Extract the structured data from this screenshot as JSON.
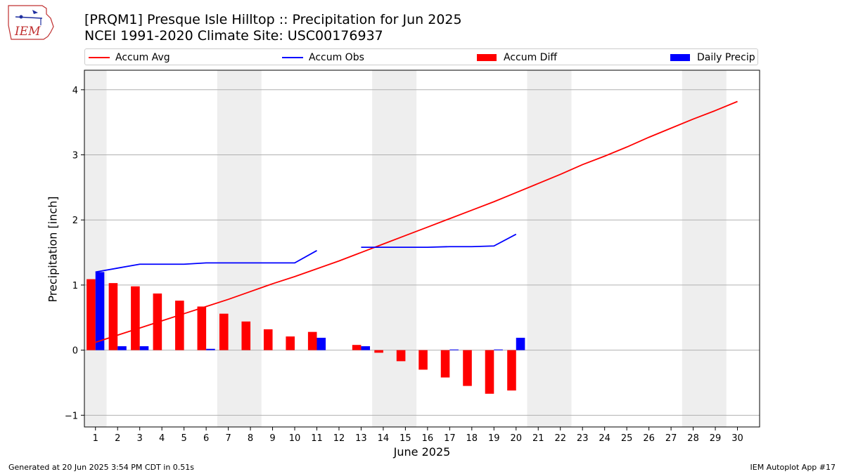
{
  "header": {
    "title_line1": "[PRQM1] Presque Isle Hilltop :: Precipitation for Jun 2025",
    "title_line2": "NCEI 1991-2020 Climate Site: USC00176937"
  },
  "logo": {
    "text": "IEM",
    "icon": "iowa-state-logo"
  },
  "legend": {
    "accum_avg": "Accum Avg",
    "accum_obs": "Accum Obs",
    "accum_diff": "Accum Diff",
    "daily_precip": "Daily Precip"
  },
  "colors": {
    "avg": "#ff0000",
    "obs": "#0000ff",
    "diff": "#ff0000",
    "daily": "#0000ff",
    "weekend": "#eeeeee"
  },
  "footer": {
    "left": "Generated at 20 Jun 2025 3:54 PM CDT in 0.51s",
    "right": "IEM Autoplot App #17"
  },
  "chart_data": {
    "type": "bar",
    "xlabel": "June 2025",
    "ylabel": "Precipitation [inch]",
    "xlim": [
      0.5,
      31
    ],
    "ylim": [
      -1.18,
      4.3
    ],
    "yticks": [
      -1,
      0,
      1,
      2,
      3,
      4
    ],
    "ytick_labels": [
      "−1",
      "0",
      "1",
      "2",
      "3",
      "4"
    ],
    "x": [
      1,
      2,
      3,
      4,
      5,
      6,
      7,
      8,
      9,
      10,
      11,
      12,
      13,
      14,
      15,
      16,
      17,
      18,
      19,
      20,
      21,
      22,
      23,
      24,
      25,
      26,
      27,
      28,
      29,
      30
    ],
    "xtick_labels": [
      "1",
      "2",
      "3",
      "4",
      "5",
      "6",
      "7",
      "8",
      "9",
      "10",
      "11",
      "12",
      "13",
      "14",
      "15",
      "16",
      "17",
      "18",
      "19",
      "20",
      "21",
      "22",
      "23",
      "24",
      "25",
      "26",
      "27",
      "28",
      "29",
      "30"
    ],
    "weekend_spans": [
      [
        0.5,
        1.5
      ],
      [
        6.5,
        8.5
      ],
      [
        13.5,
        15.5
      ],
      [
        20.5,
        22.5
      ],
      [
        27.5,
        29.5
      ]
    ],
    "grid": true,
    "legend_position": "top",
    "series": [
      {
        "name": "Accum Avg",
        "type": "line",
        "values": [
          0.12,
          0.23,
          0.34,
          0.45,
          0.56,
          0.67,
          0.78,
          0.9,
          1.02,
          1.13,
          1.25,
          1.37,
          1.5,
          1.63,
          1.76,
          1.89,
          2.02,
          2.15,
          2.28,
          2.42,
          2.56,
          2.7,
          2.85,
          2.98,
          3.12,
          3.27,
          3.41,
          3.55,
          3.68,
          3.82
        ]
      },
      {
        "name": "Accum Obs",
        "type": "line",
        "values": [
          1.2,
          1.26,
          1.32,
          1.32,
          1.32,
          1.34,
          1.34,
          1.34,
          1.34,
          1.34,
          1.53,
          null,
          1.58,
          1.58,
          1.58,
          1.58,
          1.59,
          1.59,
          1.6,
          1.78,
          null,
          null,
          null,
          null,
          null,
          null,
          null,
          null,
          null,
          null
        ]
      },
      {
        "name": "Accum Diff",
        "type": "bar",
        "values": [
          1.09,
          1.03,
          0.98,
          0.87,
          0.76,
          0.67,
          0.56,
          0.44,
          0.32,
          0.21,
          0.28,
          null,
          0.08,
          -0.04,
          -0.17,
          -0.3,
          -0.42,
          -0.55,
          -0.67,
          -0.62,
          null,
          null,
          null,
          null,
          null,
          null,
          null,
          null,
          null,
          null
        ]
      },
      {
        "name": "Daily Precip",
        "type": "bar",
        "values": [
          1.2,
          0.06,
          0.06,
          0,
          0,
          0.02,
          0,
          0,
          0,
          0,
          0.19,
          null,
          0.06,
          0,
          0,
          0,
          0.01,
          0,
          0.01,
          0.19,
          null,
          null,
          null,
          null,
          null,
          null,
          null,
          null,
          null,
          null
        ]
      }
    ]
  }
}
